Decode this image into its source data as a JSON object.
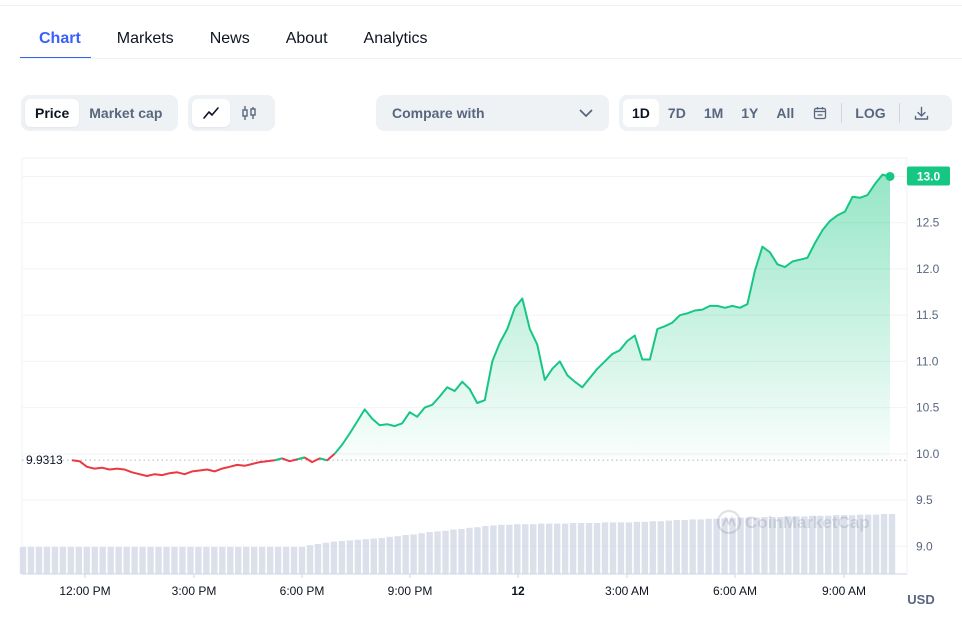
{
  "tabs": [
    "Chart",
    "Markets",
    "News",
    "About",
    "Analytics"
  ],
  "toolbar": {
    "price_label": "Price",
    "market_cap_label": "Market cap",
    "line_icon": "line-chart-icon",
    "candle_icon": "candlestick-icon",
    "compare_label": "Compare with",
    "ranges": [
      "1D",
      "7D",
      "1M",
      "1Y",
      "All"
    ],
    "calendar_icon": "calendar-icon",
    "log_label": "LOG",
    "download_icon": "download-icon"
  },
  "chart_data": {
    "type": "line",
    "x_tick_labels": [
      "12:00 PM",
      "3:00 PM",
      "6:00 PM",
      "9:00 PM",
      "12",
      "3:00 AM",
      "6:00 AM",
      "9:00 AM"
    ],
    "y_tick_labels": [
      "13.0",
      "12.5",
      "12.0",
      "11.5",
      "11.0",
      "10.5",
      "10.0",
      "9.5",
      "9.0"
    ],
    "ylim": [
      8.7,
      13.2
    ],
    "unit_label": "USD",
    "reference_value": "9.9313",
    "last_value": "13.0",
    "watermark": "CoinMarketCap",
    "colors": {
      "up": "#16c784",
      "down": "#ea3943",
      "volume": "#cfd6e4"
    },
    "series": [
      {
        "values": [
          9.93,
          9.92,
          9.86,
          9.84,
          9.85,
          9.83,
          9.84,
          9.83,
          9.8,
          9.78,
          9.76,
          9.78,
          9.77,
          9.79,
          9.8,
          9.78,
          9.81,
          9.82,
          9.83,
          9.81,
          9.84,
          9.86,
          9.88,
          9.87,
          9.89,
          9.91,
          9.92,
          9.93,
          9.95,
          9.92,
          9.94,
          9.96,
          9.91,
          9.95,
          9.93,
          10.0,
          10.1,
          10.22,
          10.35,
          10.48,
          10.38,
          10.31,
          10.32,
          10.3,
          10.33,
          10.45,
          10.4,
          10.5,
          10.53,
          10.62,
          10.72,
          10.68,
          10.78,
          10.7,
          10.55,
          10.58,
          11.0,
          11.2,
          11.35,
          11.58,
          11.68,
          11.35,
          11.18,
          10.8,
          10.92,
          11.0,
          10.85,
          10.78,
          10.72,
          10.82,
          10.92,
          11.0,
          11.08,
          11.12,
          11.22,
          11.28,
          11.02,
          11.02,
          11.35,
          11.38,
          11.42,
          11.5,
          11.52,
          11.55,
          11.56,
          11.6,
          11.6,
          11.58,
          11.6,
          11.58,
          11.62,
          11.98,
          12.24,
          12.18,
          12.05,
          12.02,
          12.08,
          12.1,
          12.12,
          12.28,
          12.42,
          12.52,
          12.58,
          12.62,
          12.78,
          12.77,
          12.8,
          12.92,
          13.02,
          13.0
        ]
      }
    ],
    "volume": [
      0.45,
      0.45,
      0.45,
      0.45,
      0.45,
      0.45,
      0.45,
      0.45,
      0.45,
      0.45,
      0.45,
      0.45,
      0.45,
      0.45,
      0.45,
      0.45,
      0.45,
      0.45,
      0.45,
      0.45,
      0.45,
      0.45,
      0.45,
      0.45,
      0.45,
      0.45,
      0.45,
      0.45,
      0.45,
      0.45,
      0.45,
      0.45,
      0.45,
      0.45,
      0.45,
      0.45,
      0.48,
      0.5,
      0.52,
      0.54,
      0.55,
      0.56,
      0.57,
      0.58,
      0.59,
      0.6,
      0.62,
      0.63,
      0.65,
      0.66,
      0.68,
      0.7,
      0.71,
      0.72,
      0.74,
      0.75,
      0.77,
      0.78,
      0.8,
      0.81,
      0.82,
      0.82,
      0.83,
      0.83,
      0.83,
      0.84,
      0.84,
      0.84,
      0.84,
      0.85,
      0.85,
      0.85,
      0.85,
      0.86,
      0.86,
      0.86,
      0.86,
      0.87,
      0.87,
      0.88,
      0.88,
      0.89,
      0.9,
      0.9,
      0.91,
      0.91,
      0.92,
      0.92,
      0.93,
      0.93,
      0.94,
      0.94,
      0.94,
      0.95,
      0.95,
      0.95,
      0.96,
      0.96,
      0.96,
      0.97,
      0.97,
      0.97,
      0.98,
      0.98,
      0.98,
      0.99,
      0.99,
      0.99,
      1.0,
      1.0
    ]
  }
}
